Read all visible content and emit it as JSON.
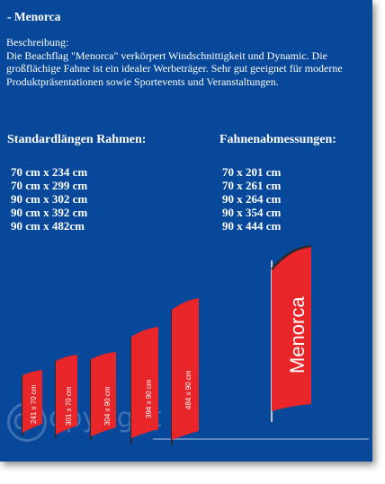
{
  "title": "- Menorca",
  "description": {
    "heading": "Beschreibung:",
    "text": "Die Beachflag \"Menorca\" verkörpert Windschnittigkeit und Dynamic. Die großflächige Fahne ist ein idealer Werbeträger. Sehr gut geeignet für moderne Produktpräsentationen sowie Sportevents und Veranstaltungen."
  },
  "frames": {
    "heading": "Standardlängen Rahmen:",
    "items": [
      "70 cm x 234 cm",
      "70 cm x 299 cm",
      "90 cm x 302 cm",
      "90 cm x 392 cm",
      "90 cm x 482cm"
    ]
  },
  "flags": {
    "heading": "Fahnenabmessungen:",
    "items": [
      "70 x 201 cm",
      "70 x 261 cm",
      "90 x 264 cm",
      "90 x 354 cm",
      "90 x 444 cm"
    ]
  },
  "illustration": {
    "small_labels": [
      "241 x 70 cm",
      "301 x 70 cm",
      "304 x 90 cm",
      "394 x 90 cm",
      "484 x 90 cm"
    ],
    "large_label": "Menorca",
    "flag_color": "#e8262a",
    "pole_color": "#2a2a2a"
  },
  "watermark": {
    "symbol": "c",
    "word": "opyright"
  },
  "colors": {
    "panel_background": "#07489a",
    "text": "#ffffff"
  }
}
